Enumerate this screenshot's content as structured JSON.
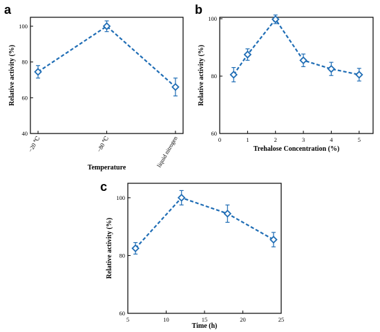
{
  "colors": {
    "series": "#1f6db5",
    "axis": "#000000"
  },
  "chart_data": [
    {
      "panel": "a",
      "type": "line",
      "categories": [
        "−20 ℃",
        "−80 ℃",
        "liquid nitrogen"
      ],
      "values": [
        74.5,
        100,
        66
      ],
      "errors": [
        3.5,
        3.0,
        5.0
      ],
      "xlabel": "Temperature",
      "ylabel": "Relative activity (%)",
      "ylim": [
        40,
        105
      ],
      "yticks": [
        40,
        60,
        80,
        100
      ],
      "marker": "diamond",
      "line_style": "dashed",
      "grid": false
    },
    {
      "panel": "b",
      "type": "line",
      "x": [
        0.5,
        1,
        2,
        3,
        4,
        5
      ],
      "values": [
        80.5,
        87.5,
        99.8,
        85.5,
        82.5,
        80.5
      ],
      "errors": [
        2.5,
        2.0,
        1.5,
        2.2,
        2.3,
        2.2
      ],
      "xlabel": "Trehalose Concentration (%)",
      "ylabel": "Relative activity (%)",
      "xlim": [
        0,
        5.5
      ],
      "xticks": [
        0,
        1,
        2,
        3,
        4,
        5
      ],
      "ylim": [
        60,
        100.5
      ],
      "yticks": [
        60,
        80,
        100
      ],
      "marker": "diamond",
      "line_style": "dashed",
      "grid": false
    },
    {
      "panel": "c",
      "type": "line",
      "x": [
        6,
        12,
        18,
        24
      ],
      "values": [
        82.5,
        100,
        94.5,
        85.5
      ],
      "errors": [
        2.0,
        2.5,
        3.0,
        2.5
      ],
      "xlabel": "Time (h)",
      "ylabel": "Relative activity (%)",
      "xlim": [
        5,
        25
      ],
      "xticks": [
        5,
        10,
        15,
        20,
        25
      ],
      "ylim": [
        60,
        105
      ],
      "yticks": [
        60,
        80,
        100
      ],
      "marker": "diamond",
      "line_style": "dashed",
      "grid": false
    }
  ]
}
